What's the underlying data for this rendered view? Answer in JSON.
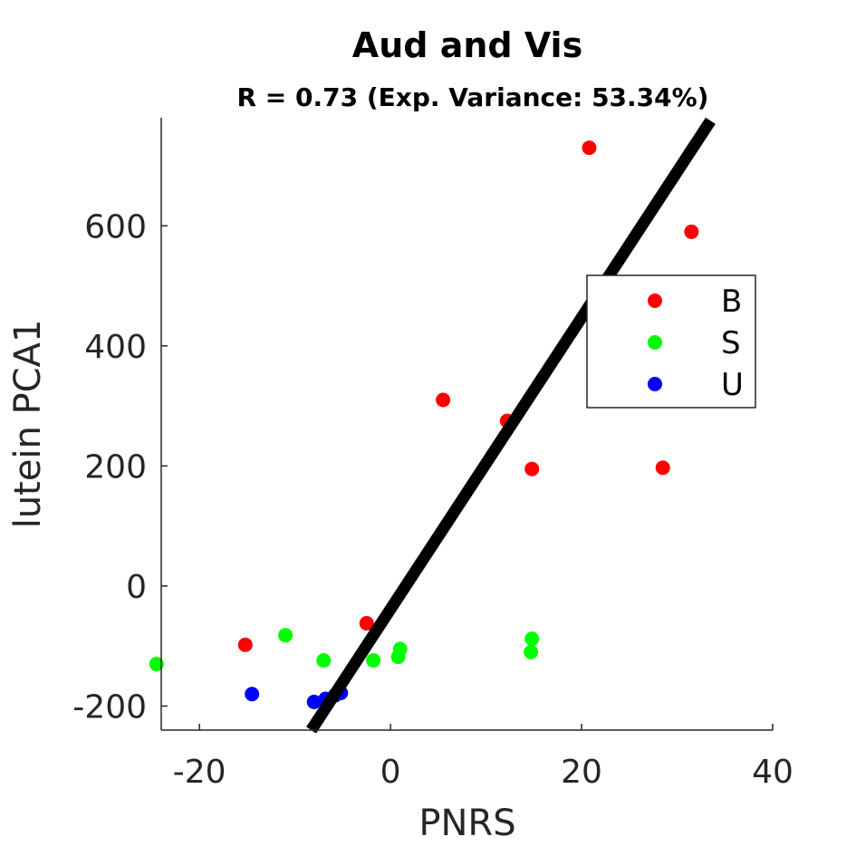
{
  "chart_data": {
    "type": "scatter",
    "title": "Aud and Vis",
    "subtitle": "R = 0.73 (Exp. Variance: 53.34%)",
    "xlabel": "PNRS",
    "ylabel": "lutein PCA1",
    "xlim": [
      -24,
      40
    ],
    "ylim": [
      -240,
      780
    ],
    "xticks": [
      -20,
      0,
      20,
      40
    ],
    "yticks": [
      -200,
      0,
      200,
      400,
      600
    ],
    "grid": false,
    "legend_position": "right",
    "series": [
      {
        "name": "B",
        "color": "#ff0000",
        "points": [
          {
            "x": 20.8,
            "y": 730
          },
          {
            "x": 31.5,
            "y": 590
          },
          {
            "x": 5.5,
            "y": 310
          },
          {
            "x": 12.2,
            "y": 275
          },
          {
            "x": 14.8,
            "y": 195
          },
          {
            "x": 28.5,
            "y": 197
          },
          {
            "x": -2.5,
            "y": -62
          },
          {
            "x": -15.2,
            "y": -98
          }
        ]
      },
      {
        "name": "S",
        "color": "#00ff00",
        "points": [
          {
            "x": -24.5,
            "y": -130
          },
          {
            "x": -11.0,
            "y": -82
          },
          {
            "x": -7.0,
            "y": -124
          },
          {
            "x": -1.8,
            "y": -124
          },
          {
            "x": 1.0,
            "y": -105
          },
          {
            "x": 0.8,
            "y": -118
          },
          {
            "x": 14.8,
            "y": -88
          },
          {
            "x": 14.7,
            "y": -110
          }
        ]
      },
      {
        "name": "U",
        "color": "#0000ff",
        "points": [
          {
            "x": -14.5,
            "y": -180
          },
          {
            "x": -8.0,
            "y": -193
          },
          {
            "x": -6.8,
            "y": -188
          },
          {
            "x": -5.8,
            "y": -182
          },
          {
            "x": -5.2,
            "y": -178
          }
        ]
      }
    ],
    "fit_line": {
      "x": [
        -8.3,
        33.5
      ],
      "y": [
        -240,
        775
      ],
      "color": "#000000"
    }
  }
}
